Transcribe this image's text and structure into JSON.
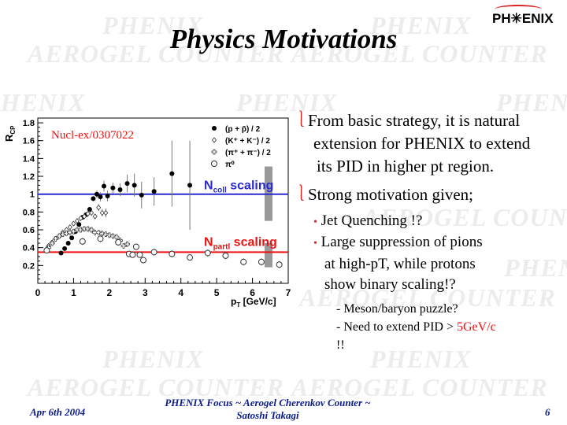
{
  "watermark": {
    "phenix": "PHENIX",
    "aerogel": "AEROGEL COUNTER"
  },
  "logo": "PH✳ENIX",
  "title": "Physics Motivations",
  "bullets": [
    {
      "lines": [
        "From basic strategy, it is natural",
        "extension for PHENIX to extend",
        "its PID in higher pt region."
      ]
    },
    {
      "lines": [
        "Strong motivation given;"
      ]
    }
  ],
  "sub_bullets": [
    {
      "lines": [
        "Jet Quenching !?"
      ]
    },
    {
      "lines": [
        "Large suppression of pions",
        "at high-pT, while protons",
        "show binary scaling!?"
      ]
    }
  ],
  "sub_sub": {
    "line1": "- Meson/baryon puzzle?",
    "line2_prefix": "- Need to extend PID > ",
    "line2_highlight": "5GeV/c",
    "line3": "!!"
  },
  "footer": {
    "date": "Apr 6th 2004",
    "center_line1": "PHENIX Focus  ~ Aerogel Cherenkov Counter ~",
    "center_line2": "Satoshi Takagi",
    "page": "6"
  },
  "chart_data": {
    "type": "scatter",
    "annotation": "Nucl-ex/0307022",
    "ylabel": "R",
    "ylabel_sub": "CP",
    "xlabel": "p",
    "xlabel_sub": "T",
    "xlabel_unit": " [GeV/c]",
    "xlim": [
      0,
      7
    ],
    "ylim": [
      0,
      1.8
    ],
    "xticks": [
      "0",
      "1",
      "2",
      "3",
      "4",
      "5",
      "6",
      "7"
    ],
    "yticks": [
      "0.2",
      "0.4",
      "0.6",
      "0.8",
      "1",
      "1.2",
      "1.4",
      "1.6",
      "1.8"
    ],
    "lines": [
      {
        "label": "N",
        "label_sub": "coll",
        "label_suffix": " scaling",
        "y": 1.0,
        "color": "#2a2ad0"
      },
      {
        "label": "N",
        "label_sub": "partl",
        "label_suffix": " scaling",
        "y": 0.35,
        "color": "#ee1111"
      }
    ],
    "systematic_bands": [
      {
        "x": 6.45,
        "y": [
          0.7,
          1.31
        ]
      },
      {
        "x": 6.45,
        "y": [
          0.18,
          0.45
        ]
      }
    ],
    "series": [
      {
        "name": "(p + p̄) / 2",
        "marker": "filled-circle",
        "points": [
          [
            0.65,
            0.34,
            0
          ],
          [
            0.75,
            0.39,
            0
          ],
          [
            0.85,
            0.45,
            0
          ],
          [
            0.95,
            0.51,
            0
          ],
          [
            1.05,
            0.58,
            0
          ],
          [
            1.15,
            0.66,
            0
          ],
          [
            1.25,
            0.74,
            0.02
          ],
          [
            1.35,
            0.77,
            0.02
          ],
          [
            1.45,
            0.83,
            0.02
          ],
          [
            1.55,
            0.95,
            0.03
          ],
          [
            1.65,
            1.0,
            0.04
          ],
          [
            1.75,
            0.97,
            0.05
          ],
          [
            1.85,
            1.09,
            0.06
          ],
          [
            1.95,
            0.98,
            0.06
          ],
          [
            2.1,
            1.07,
            0.06
          ],
          [
            2.3,
            1.05,
            0.07
          ],
          [
            2.5,
            1.12,
            0.1
          ],
          [
            2.7,
            1.1,
            0.13
          ],
          [
            2.9,
            0.99,
            0.15
          ],
          [
            3.25,
            1.03,
            0.16
          ],
          [
            3.75,
            1.23,
            0.37
          ],
          [
            4.25,
            1.1,
            0.5
          ]
        ]
      },
      {
        "name": "(K⁺ + K⁻) / 2",
        "marker": "diamond",
        "points": [
          [
            0.3,
            0.42,
            0
          ],
          [
            0.4,
            0.46,
            0
          ],
          [
            0.5,
            0.5,
            0
          ],
          [
            0.6,
            0.53,
            0
          ],
          [
            0.7,
            0.57,
            0
          ],
          [
            0.8,
            0.6,
            0
          ],
          [
            0.9,
            0.63,
            0
          ],
          [
            1.0,
            0.67,
            0
          ],
          [
            1.1,
            0.7,
            0
          ],
          [
            1.2,
            0.73,
            0
          ],
          [
            1.3,
            0.75,
            0.02
          ],
          [
            1.4,
            0.78,
            0.02
          ],
          [
            1.5,
            0.79,
            0.03
          ],
          [
            1.6,
            0.75,
            0.03
          ],
          [
            1.7,
            0.85,
            0.04
          ],
          [
            1.8,
            0.79,
            0.04
          ],
          [
            1.9,
            0.79,
            0.05
          ]
        ]
      },
      {
        "name": "(π⁺ + π⁻) / 2",
        "marker": "cross",
        "points": [
          [
            0.3,
            0.4,
            0
          ],
          [
            0.4,
            0.45,
            0
          ],
          [
            0.5,
            0.5,
            0
          ],
          [
            0.6,
            0.53,
            0
          ],
          [
            0.7,
            0.55,
            0
          ],
          [
            0.8,
            0.56,
            0
          ],
          [
            0.9,
            0.57,
            0
          ],
          [
            1.0,
            0.58,
            0
          ],
          [
            1.1,
            0.6,
            0
          ],
          [
            1.2,
            0.6,
            0
          ],
          [
            1.3,
            0.61,
            0
          ],
          [
            1.4,
            0.61,
            0
          ],
          [
            1.5,
            0.6,
            0
          ],
          [
            1.6,
            0.57,
            0
          ],
          [
            1.7,
            0.57,
            0
          ],
          [
            1.8,
            0.56,
            0
          ],
          [
            1.9,
            0.55,
            0
          ],
          [
            2.0,
            0.54,
            0.01
          ],
          [
            2.1,
            0.53,
            0.01
          ],
          [
            2.2,
            0.52,
            0.02
          ],
          [
            2.3,
            0.48,
            0.02
          ],
          [
            2.4,
            0.42,
            0.02
          ],
          [
            2.5,
            0.44,
            0.02
          ]
        ]
      },
      {
        "name": "π⁰",
        "marker": "open-circle",
        "points": [
          [
            0.25,
            0.37,
            0
          ],
          [
            1.25,
            0.47,
            0.04
          ],
          [
            1.75,
            0.5,
            0.04
          ],
          [
            2.25,
            0.46,
            0.04
          ],
          [
            2.55,
            0.33,
            0.03
          ],
          [
            2.65,
            0.32,
            0.03
          ],
          [
            2.75,
            0.41,
            0.03
          ],
          [
            2.85,
            0.32,
            0.03
          ],
          [
            2.95,
            0.26,
            0.03
          ],
          [
            3.25,
            0.35,
            0.04
          ],
          [
            3.75,
            0.33,
            0.04
          ],
          [
            4.25,
            0.29,
            0.03
          ],
          [
            4.75,
            0.34,
            0.04
          ],
          [
            5.25,
            0.31,
            0.04
          ],
          [
            5.75,
            0.24,
            0.04
          ],
          [
            6.25,
            0.24,
            0.04
          ],
          [
            6.75,
            0.21,
            0.04
          ]
        ]
      }
    ]
  }
}
